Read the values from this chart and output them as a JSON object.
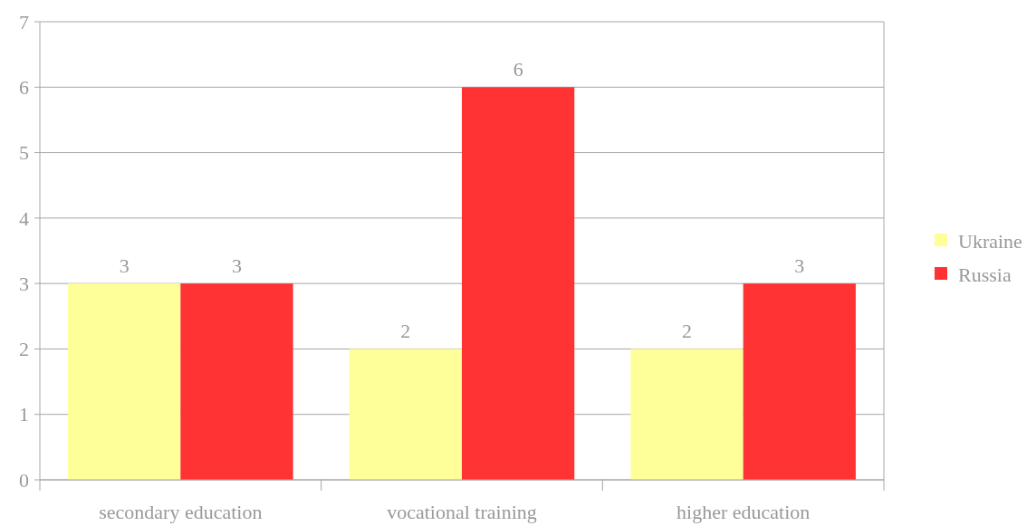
{
  "chart_data": {
    "type": "bar",
    "categories": [
      "secondary education",
      "vocational training",
      "higher education"
    ],
    "series": [
      {
        "name": "Ukraine",
        "color": "#ffff99",
        "values": [
          3,
          2,
          2
        ]
      },
      {
        "name": "Russia",
        "color": "#ff3333",
        "values": [
          3,
          6,
          3
        ]
      }
    ],
    "ylim": [
      0,
      7
    ],
    "yticks": [
      0,
      1,
      2,
      3,
      4,
      5,
      6,
      7
    ],
    "grid": "y",
    "legend": "right",
    "data_labels": true
  }
}
